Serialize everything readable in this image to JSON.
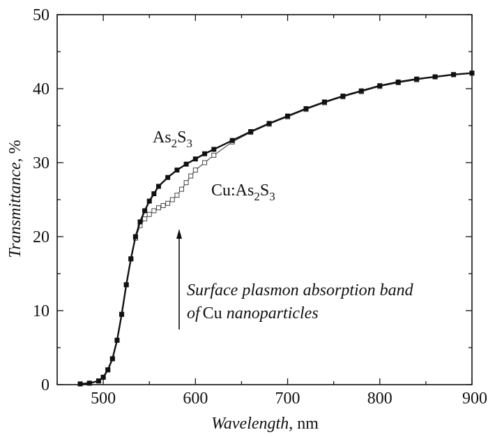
{
  "chart_data": {
    "type": "line",
    "xlabel": {
      "italic": "Wavelength",
      "rest": ", nm"
    },
    "ylabel": {
      "italic": "Transmittance",
      "rest": ", %"
    },
    "xlim": [
      450,
      900
    ],
    "ylim": [
      0,
      50
    ],
    "x_ticks": [
      "500",
      "600",
      "700",
      "800",
      "900"
    ],
    "y_ticks": [
      "0",
      "10",
      "20",
      "30",
      "40",
      "50"
    ],
    "series": [
      {
        "name": "As2S3",
        "marker": "filled-square",
        "x": [
          475,
          485,
          495,
          500,
          505,
          510,
          515,
          520,
          525,
          530,
          535,
          540,
          545,
          550,
          555,
          560,
          570,
          580,
          590,
          600,
          610,
          620,
          640,
          660,
          680,
          700,
          720,
          740,
          760,
          780,
          800,
          820,
          840,
          860,
          880,
          900
        ],
        "y": [
          0.1,
          0.2,
          0.5,
          1.0,
          2.0,
          3.5,
          6.0,
          9.5,
          13.5,
          17.0,
          20.0,
          22.0,
          23.5,
          24.8,
          25.8,
          26.8,
          28.0,
          29.0,
          29.8,
          30.5,
          31.2,
          31.8,
          33.0,
          34.2,
          35.3,
          36.3,
          37.3,
          38.2,
          39.0,
          39.7,
          40.4,
          40.9,
          41.3,
          41.6,
          41.9,
          42.1
        ]
      },
      {
        "name": "Cu:As2S3",
        "marker": "open-square",
        "x": [
          475,
          485,
          495,
          500,
          505,
          510,
          515,
          520,
          525,
          530,
          535,
          540,
          545,
          550,
          555,
          560,
          565,
          570,
          575,
          580,
          585,
          590,
          595,
          600,
          610,
          620,
          640,
          660,
          680,
          700,
          720,
          740,
          760,
          780,
          800,
          820,
          840,
          860,
          880,
          900
        ],
        "y": [
          0.1,
          0.2,
          0.5,
          1.0,
          2.0,
          3.5,
          6.0,
          9.5,
          13.5,
          17.0,
          19.8,
          21.5,
          22.4,
          23.0,
          23.5,
          23.9,
          24.2,
          24.5,
          25.0,
          25.6,
          26.4,
          27.3,
          28.2,
          29.0,
          30.0,
          31.0,
          32.8,
          34.1,
          35.2,
          36.2,
          37.2,
          38.1,
          38.9,
          39.6,
          40.3,
          40.8,
          41.2,
          41.6,
          41.9,
          42.1
        ]
      }
    ],
    "annotations": {
      "as2s3": {
        "main": "As",
        "sub1": "2",
        "mid": "S",
        "sub2": "3"
      },
      "cu": {
        "main": "Cu:As",
        "sub1": "2",
        "mid": "S",
        "sub2": "3"
      },
      "plasmon_line1": "Surface plasmon absorption band",
      "plasmon_line2_prefix": "of",
      "plasmon_line2_cu": "Cu",
      "plasmon_line2_suffix": "nanoparticles"
    },
    "grid": false,
    "legend": "none"
  }
}
